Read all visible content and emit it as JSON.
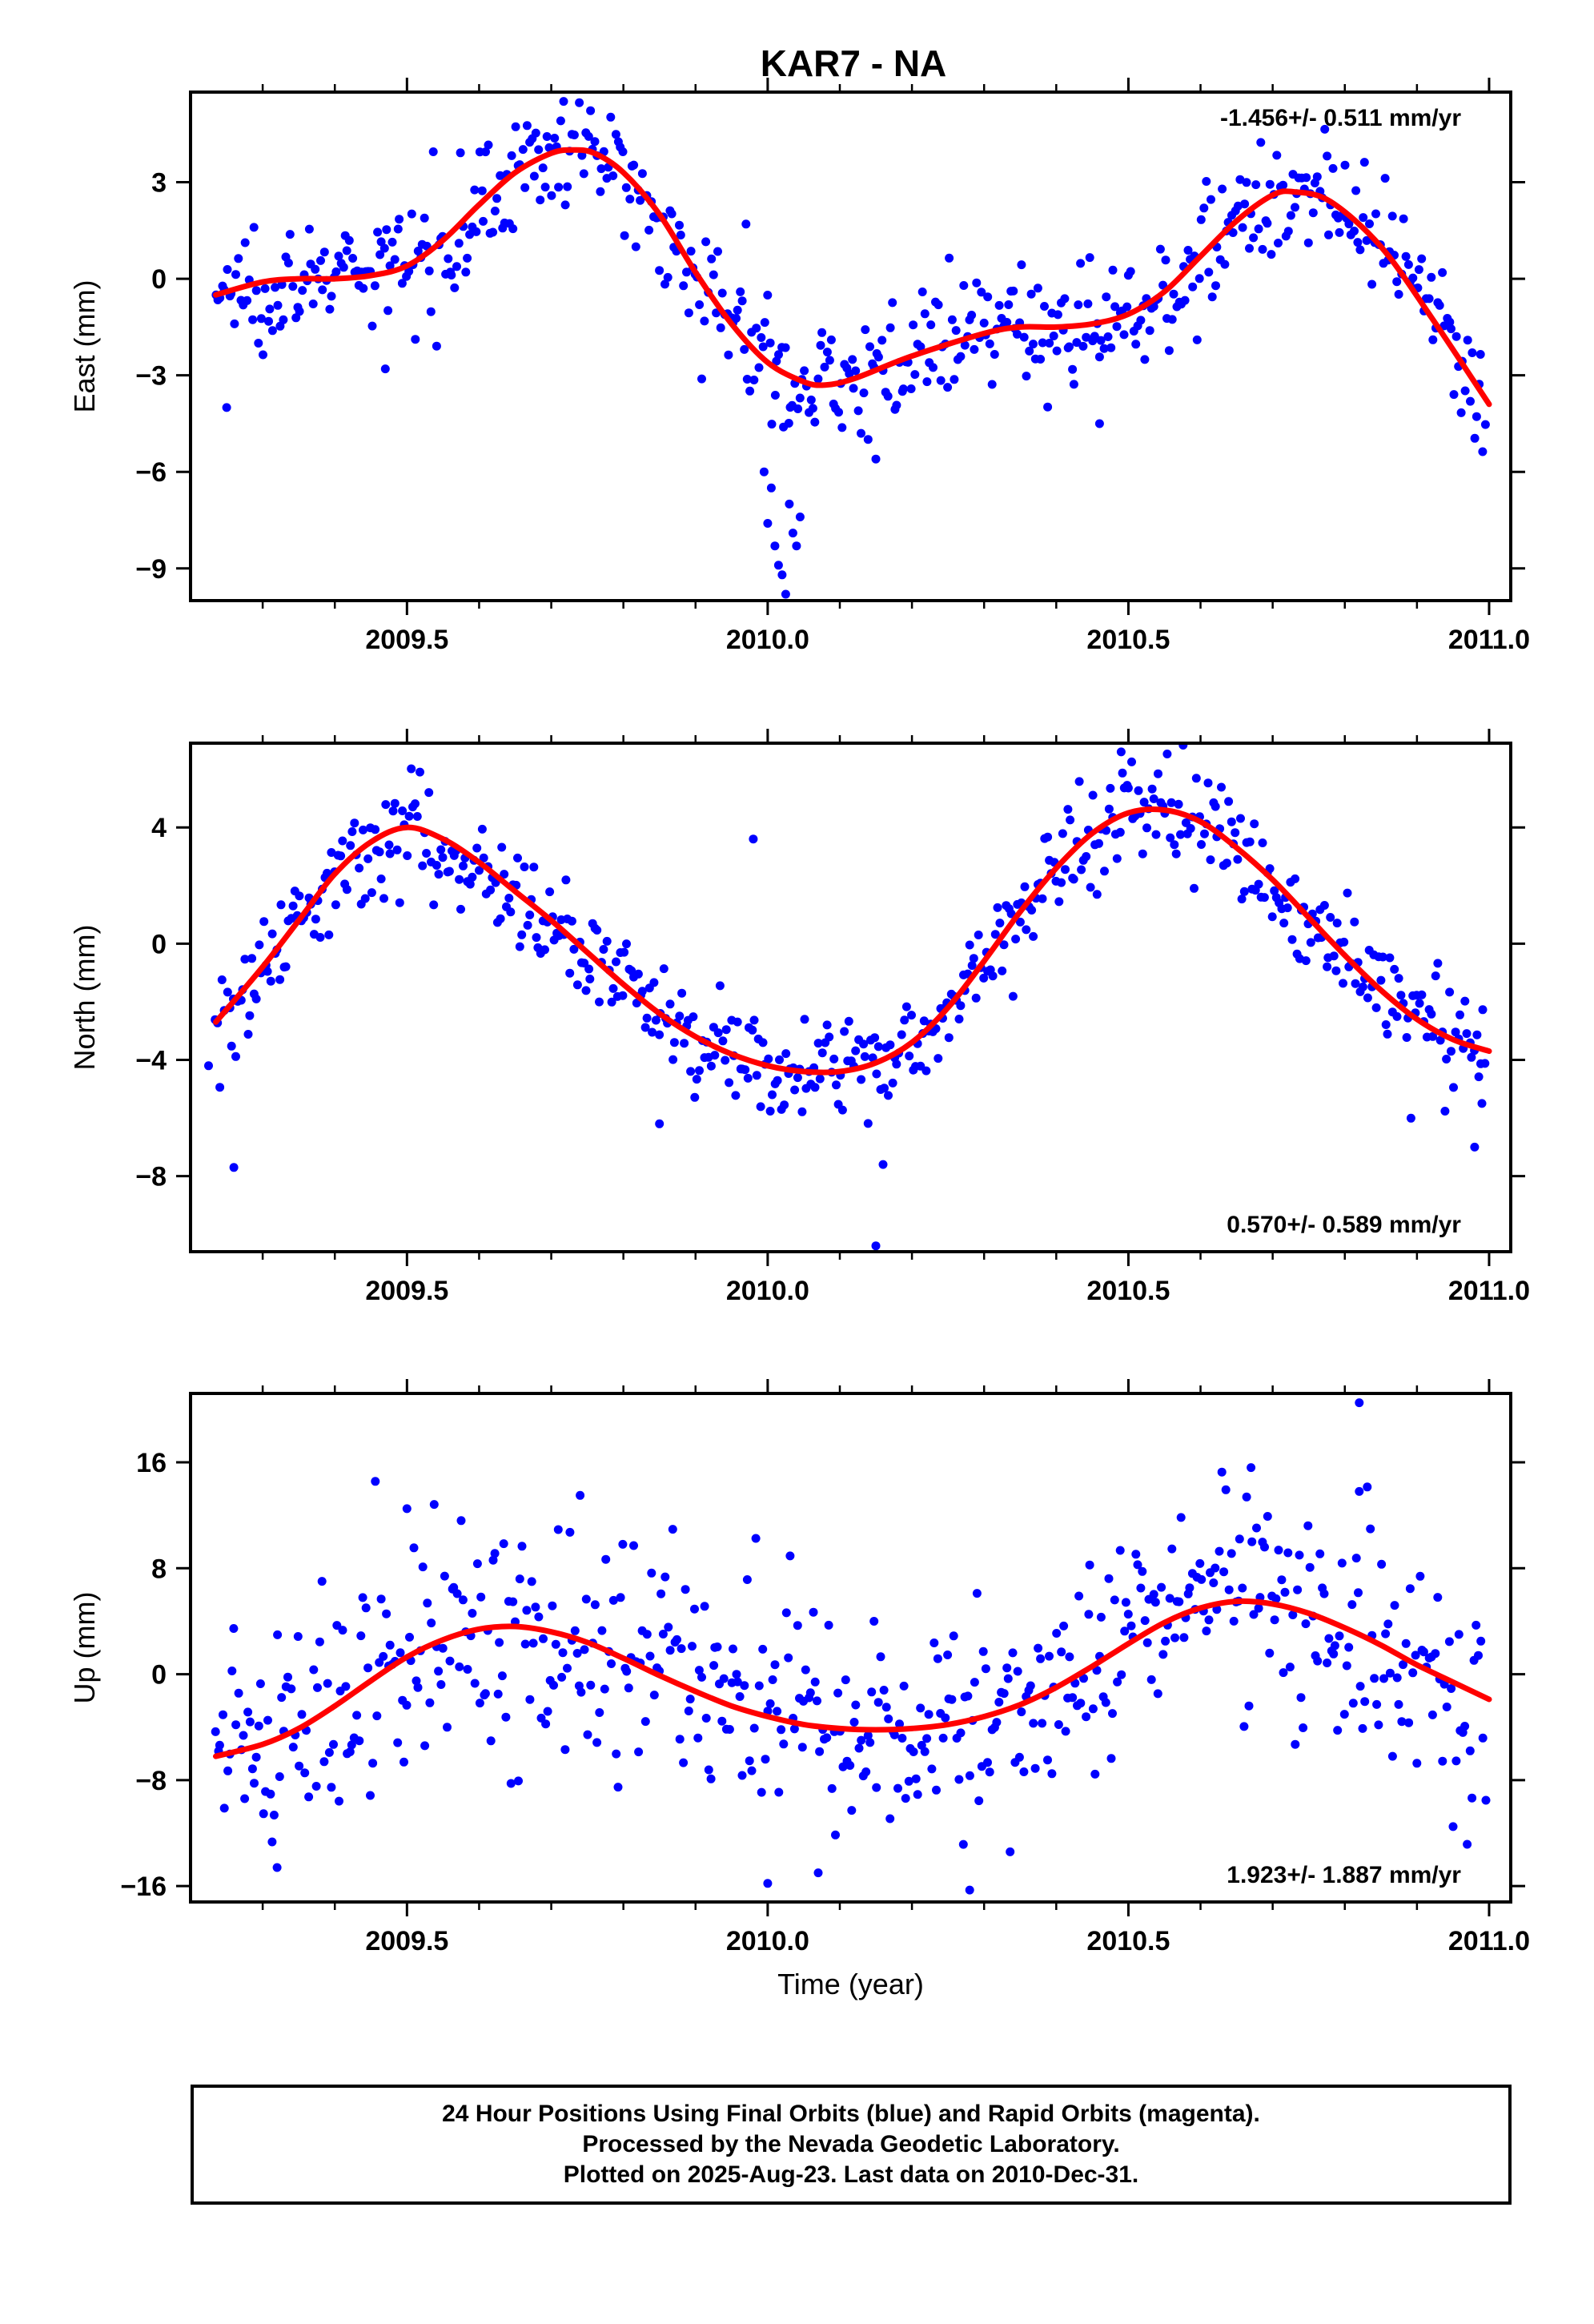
{
  "title": "KAR7 - NA",
  "footer": {
    "line1": "24 Hour Positions Using Final Orbits (blue) and Rapid Orbits (magenta).",
    "line2": "Processed by the Nevada Geodetic Laboratory.",
    "line3": "Plotted on 2025-Aug-23. Last data on 2010-Dec-31."
  },
  "colors": {
    "points": "#0000ff",
    "fit": "#ff0000",
    "axis": "#000000"
  },
  "chart_data": [
    {
      "type": "scatter",
      "name": "east",
      "ylabel": "East (mm)",
      "xlabel": "",
      "xlim": [
        2009.2,
        2011.03
      ],
      "ylim": [
        -10.0,
        5.8
      ],
      "xticks": [
        2009.5,
        2010.0,
        2010.5,
        2011.0
      ],
      "xtick_labels": [
        "2009.5",
        "2010.0",
        "2010.5",
        "2011.0"
      ],
      "yticks": [
        3,
        0,
        -3,
        -6,
        -9
      ],
      "ytick_labels": [
        "3",
        "0",
        "−3",
        "−6",
        "−9"
      ],
      "rate_label": "-1.456+/- 0.511 mm/yr",
      "rate_position": "top-right",
      "fit_x": [
        2009.235,
        2009.3,
        2009.35,
        2009.4,
        2009.45,
        2009.5,
        2009.55,
        2009.6,
        2009.65,
        2009.7,
        2009.73,
        2009.76,
        2009.8,
        2009.85,
        2009.9,
        2009.95,
        2010.0,
        2010.05,
        2010.08,
        2010.12,
        2010.2,
        2010.3,
        2010.35,
        2010.4,
        2010.45,
        2010.5,
        2010.55,
        2010.6,
        2010.65,
        2010.7,
        2010.73,
        2010.78,
        2010.85,
        2010.92,
        2011.0
      ],
      "fit_y": [
        -0.5,
        -0.1,
        0.0,
        0.0,
        0.1,
        0.4,
        1.2,
        2.3,
        3.3,
        3.9,
        4.0,
        3.9,
        3.3,
        2.0,
        0.2,
        -1.4,
        -2.6,
        -3.2,
        -3.3,
        -3.1,
        -2.4,
        -1.7,
        -1.5,
        -1.5,
        -1.4,
        -1.1,
        -0.4,
        0.7,
        1.8,
        2.6,
        2.7,
        2.4,
        1.0,
        -1.2,
        -3.9
      ],
      "points": {
        "x_start": 2009.235,
        "x_end": 2010.995,
        "count": 560,
        "noise_mm": 0.9,
        "outliers": [
          {
            "x": 2009.25,
            "y": -4.0
          },
          {
            "x": 2009.47,
            "y": -2.8
          },
          {
            "x": 2009.995,
            "y": -6.0
          },
          {
            "x": 2010.0,
            "y": -7.6
          },
          {
            "x": 2010.005,
            "y": -6.5
          },
          {
            "x": 2010.01,
            "y": -8.3
          },
          {
            "x": 2010.015,
            "y": -8.9
          },
          {
            "x": 2010.02,
            "y": -9.2
          },
          {
            "x": 2010.025,
            "y": -9.8
          },
          {
            "x": 2010.03,
            "y": -7.0
          },
          {
            "x": 2010.035,
            "y": -7.9
          },
          {
            "x": 2010.04,
            "y": -8.3
          },
          {
            "x": 2010.045,
            "y": -7.4
          },
          {
            "x": 2010.15,
            "y": -5.6
          },
          {
            "x": 2010.46,
            "y": -4.5
          },
          {
            "x": 2009.97,
            "y": 1.7
          }
        ]
      }
    },
    {
      "type": "scatter",
      "name": "north",
      "ylabel": "North (mm)",
      "xlabel": "",
      "xlim": [
        2009.2,
        2011.03
      ],
      "ylim": [
        -10.6,
        6.9
      ],
      "xticks": [
        2009.5,
        2010.0,
        2010.5,
        2011.0
      ],
      "xtick_labels": [
        "2009.5",
        "2010.0",
        "2010.5",
        "2011.0"
      ],
      "yticks": [
        4,
        0,
        -4,
        -8
      ],
      "ytick_labels": [
        "4",
        "0",
        "−4",
        "−8"
      ],
      "rate_label": "0.570+/- 0.589 mm/yr",
      "rate_position": "bottom-right",
      "fit_x": [
        2009.235,
        2009.3,
        2009.35,
        2009.4,
        2009.45,
        2009.5,
        2009.55,
        2009.6,
        2009.65,
        2009.7,
        2009.75,
        2009.8,
        2009.85,
        2009.9,
        2009.95,
        2010.0,
        2010.05,
        2010.1,
        2010.15,
        2010.2,
        2010.25,
        2010.3,
        2010.35,
        2010.4,
        2010.45,
        2010.5,
        2010.55,
        2010.6,
        2010.65,
        2010.7,
        2010.75,
        2010.8,
        2010.85,
        2010.9,
        2010.95,
        2011.0
      ],
      "fit_y": [
        -2.7,
        -0.8,
        0.8,
        2.4,
        3.5,
        4.0,
        3.6,
        2.8,
        1.8,
        0.8,
        -0.3,
        -1.4,
        -2.4,
        -3.2,
        -3.8,
        -4.2,
        -4.4,
        -4.4,
        -4.1,
        -3.4,
        -2.2,
        -0.6,
        1.1,
        2.6,
        3.8,
        4.5,
        4.6,
        4.2,
        3.3,
        2.2,
        0.9,
        -0.4,
        -1.6,
        -2.6,
        -3.3,
        -3.7
      ],
      "points": {
        "x_start": 2009.235,
        "x_end": 2010.995,
        "count": 560,
        "noise_mm": 0.9,
        "outliers": [
          {
            "x": 2009.26,
            "y": -7.7
          },
          {
            "x": 2009.225,
            "y": -4.2
          },
          {
            "x": 2009.98,
            "y": 3.6
          },
          {
            "x": 2010.15,
            "y": -10.4
          },
          {
            "x": 2010.16,
            "y": -7.6
          },
          {
            "x": 2010.98,
            "y": -7.0
          },
          {
            "x": 2010.99,
            "y": -5.5
          },
          {
            "x": 2009.85,
            "y": -6.2
          },
          {
            "x": 2010.49,
            "y": 6.6
          }
        ]
      }
    },
    {
      "type": "scatter",
      "name": "up",
      "ylabel": "Up (mm)",
      "xlabel": "Time (year)",
      "xlim": [
        2009.2,
        2011.03
      ],
      "ylim": [
        -17.2,
        21.2
      ],
      "xticks": [
        2009.5,
        2010.0,
        2010.5,
        2011.0
      ],
      "xtick_labels": [
        "2009.5",
        "2010.0",
        "2010.5",
        "2011.0"
      ],
      "yticks": [
        16,
        8,
        0,
        -8,
        -16
      ],
      "ytick_labels": [
        "16",
        "8",
        "0",
        "−8",
        "−16"
      ],
      "rate_label": "1.923+/- 1.887 mm/yr",
      "rate_position": "bottom-right",
      "fit_x": [
        2009.235,
        2009.3,
        2009.35,
        2009.4,
        2009.45,
        2009.5,
        2009.55,
        2009.6,
        2009.65,
        2009.7,
        2009.75,
        2009.8,
        2009.85,
        2009.9,
        2009.95,
        2010.0,
        2010.05,
        2010.1,
        2010.15,
        2010.2,
        2010.25,
        2010.3,
        2010.35,
        2010.4,
        2010.45,
        2010.5,
        2010.55,
        2010.6,
        2010.65,
        2010.7,
        2010.75,
        2010.8,
        2010.85,
        2010.9,
        2010.95,
        2011.0
      ],
      "fit_y": [
        -6.2,
        -5.3,
        -4.1,
        -2.4,
        -0.5,
        1.3,
        2.6,
        3.4,
        3.6,
        3.2,
        2.4,
        1.2,
        -0.1,
        -1.3,
        -2.4,
        -3.2,
        -3.8,
        -4.1,
        -4.2,
        -4.1,
        -3.8,
        -3.2,
        -2.3,
        -1.0,
        0.6,
        2.3,
        3.9,
        5.0,
        5.5,
        5.3,
        4.6,
        3.5,
        2.2,
        0.7,
        -0.6,
        -1.9
      ],
      "points": {
        "x_start": 2009.235,
        "x_end": 2010.995,
        "count": 560,
        "noise_mm": 4.3,
        "outliers": [
          {
            "x": 2010.82,
            "y": 20.5
          },
          {
            "x": 2010.82,
            "y": 13.8
          },
          {
            "x": 2010.67,
            "y": 15.6
          },
          {
            "x": 2009.74,
            "y": 13.5
          },
          {
            "x": 2009.32,
            "y": -14.6
          },
          {
            "x": 2010.28,
            "y": -16.3
          },
          {
            "x": 2010.0,
            "y": -15.8
          },
          {
            "x": 2009.5,
            "y": 12.5
          },
          {
            "x": 2010.07,
            "y": -15.0
          }
        ]
      }
    }
  ]
}
